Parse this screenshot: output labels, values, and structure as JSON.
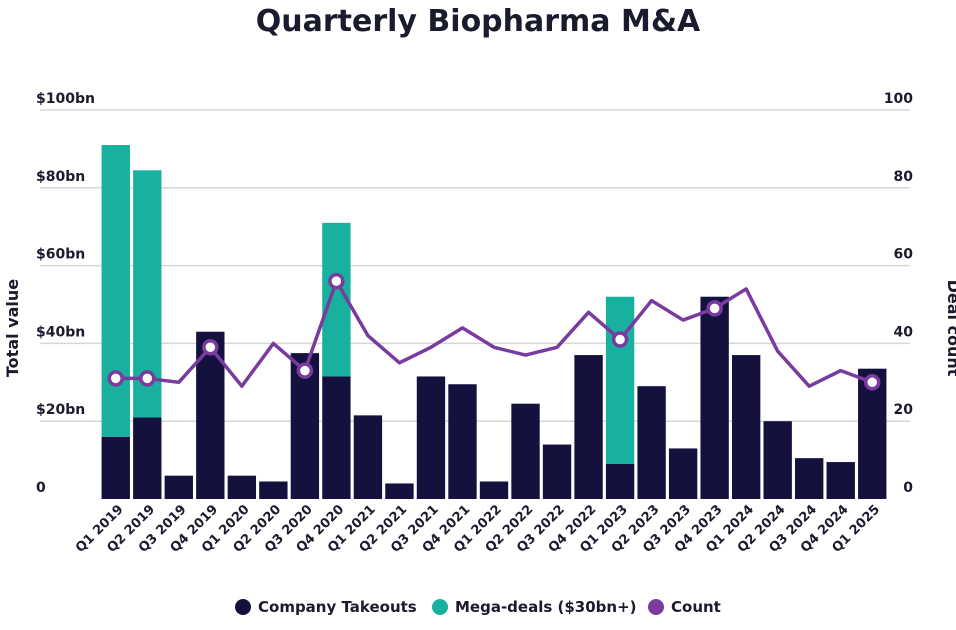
{
  "chart_data": {
    "type": "bar",
    "title": "Quarterly Biopharma M&A",
    "ylabel": "Total value",
    "y2label": "Deal count",
    "ylim": [
      0,
      100
    ],
    "y2lim": [
      0,
      100
    ],
    "yticks": [
      "0",
      "$20bn",
      "$40bn",
      "$60bn",
      "$80bn",
      "$100bn"
    ],
    "y2ticks": [
      "0",
      "20",
      "40",
      "60",
      "80",
      "100"
    ],
    "grid": true,
    "legend_position": "bottom",
    "categories": [
      "Q1 2019",
      "Q2 2019",
      "Q3 2019",
      "Q4 2019",
      "Q1 2020",
      "Q2 2020",
      "Q3 2020",
      "Q4 2020",
      "Q1 2021",
      "Q2 2021",
      "Q3 2021",
      "Q4 2021",
      "Q1 2022",
      "Q2 2022",
      "Q3 2022",
      "Q4 2022",
      "Q1 2023",
      "Q2 2023",
      "Q3 2023",
      "Q4 2023",
      "Q1 2024",
      "Q2 2024",
      "Q3 2024",
      "Q4 2024",
      "Q1 2025"
    ],
    "series": [
      {
        "name": "Company Takeouts",
        "kind": "bar",
        "stack": "value",
        "color": "#15113f",
        "values": [
          16,
          21,
          6,
          43,
          6,
          4.5,
          37.5,
          31.5,
          21.5,
          4,
          31.5,
          29.5,
          4.5,
          24.5,
          14,
          37,
          9,
          29,
          13,
          52,
          37,
          20,
          10.5,
          9.5,
          33.5
        ]
      },
      {
        "name": "Mega-deals ($30bn+)",
        "kind": "bar",
        "stack": "value",
        "color": "#18b1a0",
        "values": [
          75,
          63.5,
          0,
          0,
          0,
          0,
          0,
          39.5,
          0,
          0,
          0,
          0,
          0,
          0,
          0,
          0,
          43,
          0,
          0,
          0,
          0,
          0,
          0,
          0,
          0
        ]
      },
      {
        "name": "Count",
        "kind": "line",
        "axis": "right",
        "color": "#7a3b9f",
        "values": [
          31,
          31,
          30,
          39,
          29,
          40,
          33,
          56,
          42,
          35,
          39,
          44,
          39,
          37,
          39,
          48,
          41,
          51,
          46,
          49,
          54,
          38,
          29,
          33,
          30
        ]
      }
    ],
    "marked_points": [
      0,
      1,
      3,
      6,
      7,
      16,
      19,
      24
    ]
  }
}
